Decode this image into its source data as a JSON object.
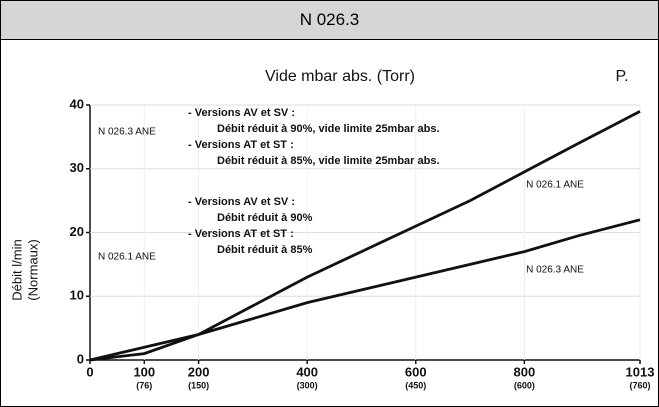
{
  "header": {
    "title": "N 026.3"
  },
  "chart_data": {
    "type": "line",
    "title": "Vide mbar abs. (Torr)",
    "corner_label": "P.",
    "ylabel": [
      "Débit l/min",
      "(Normaux)"
    ],
    "x": [
      0,
      100,
      200,
      300,
      400,
      500,
      600,
      700,
      800,
      900,
      1013
    ],
    "series": [
      {
        "name": "N 026.1 ANE",
        "color": "#111111",
        "values": [
          0,
          1,
          4,
          8.5,
          13,
          17,
          21,
          25,
          29.5,
          34,
          39
        ]
      },
      {
        "name": "N 026.3 ANE",
        "color": "#111111",
        "values": [
          0,
          2,
          4,
          6.5,
          9,
          11,
          13,
          15,
          17,
          19.5,
          22
        ]
      }
    ],
    "xlim": [
      0,
      1013
    ],
    "xticks": [
      0,
      100,
      200,
      400,
      600,
      800,
      1013
    ],
    "x2ticks": [
      {
        "value": 100,
        "label": "(76)"
      },
      {
        "value": 200,
        "label": "(150)"
      },
      {
        "value": 400,
        "label": "(300)"
      },
      {
        "value": 600,
        "label": "(450)"
      },
      {
        "value": 800,
        "label": "(600)"
      },
      {
        "value": 1013,
        "label": "(760)"
      }
    ],
    "ylim": [
      0,
      40
    ],
    "yticks": [
      0,
      10,
      20,
      30,
      40
    ],
    "grid": true,
    "annotations": [
      "N 026.3 ANE",
      "N 026.1 ANE",
      "- Versions AV et SV :",
      "Débit réduit à 90%, vide limite 25mbar abs.",
      "- Versions AT et ST :",
      "Débit réduit à 85%, vide limite 25mbar abs.",
      "- Versions AV et SV :",
      "Débit réduit à 90%",
      "- Versions AT et ST :",
      "Débit réduit à 85%"
    ]
  }
}
